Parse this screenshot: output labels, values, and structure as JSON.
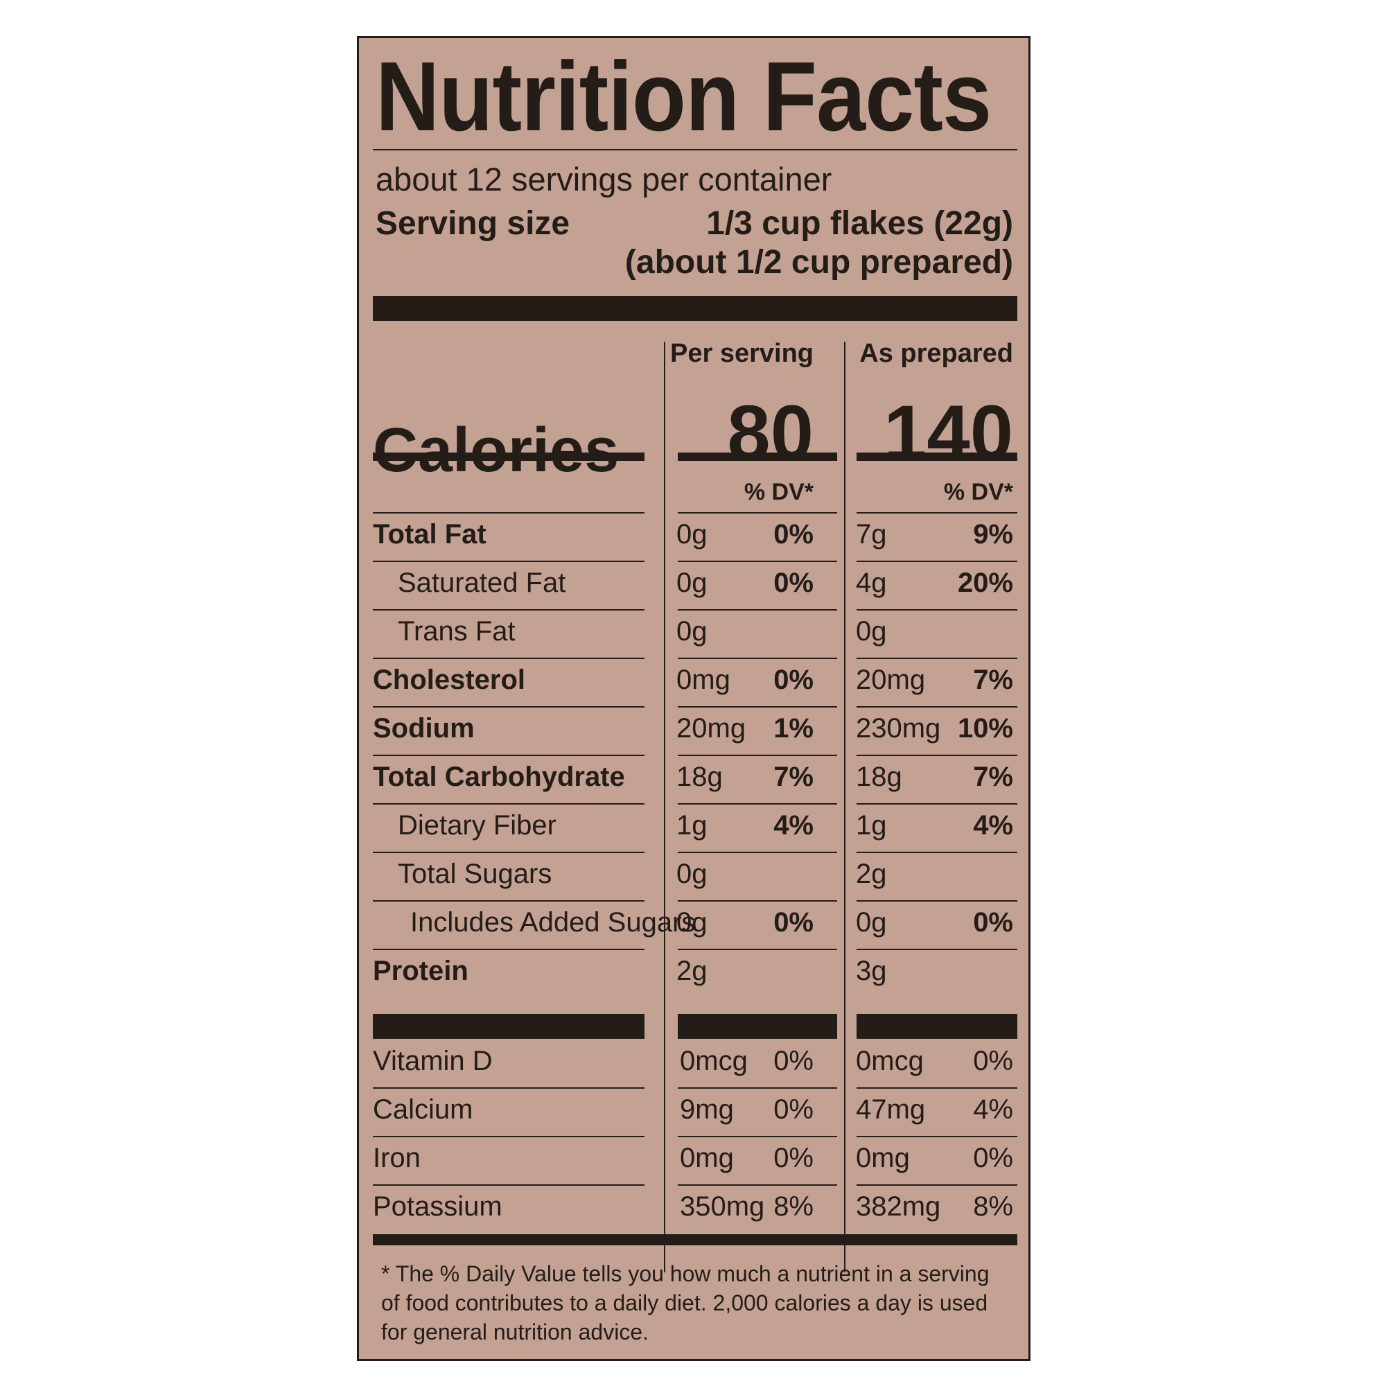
{
  "label": {
    "title": "Nutrition Facts",
    "servings_per_container": "about 12 servings per container",
    "serving_size_label": "Serving size",
    "serving_size_value": "1/3 cup flakes (22g)",
    "serving_size_prepared": "(about 1/2 cup prepared)",
    "col_per_serving": "Per serving",
    "col_as_prepared": "As prepared",
    "calories_label": "Calories",
    "calories_per_serving": "80",
    "calories_as_prepared": "140",
    "dv_header": "% DV*",
    "nutrients": [
      {
        "name": "Total Fat",
        "ps_amount": "0g",
        "ps_dv": "0%",
        "ap_amount": "7g",
        "ap_dv": "9%"
      },
      {
        "name": "Saturated Fat",
        "ps_amount": "0g",
        "ps_dv": "0%",
        "ap_amount": "4g",
        "ap_dv": "20%"
      },
      {
        "name": "Trans Fat",
        "ps_amount": "0g",
        "ps_dv": "",
        "ap_amount": "0g",
        "ap_dv": ""
      },
      {
        "name": "Cholesterol",
        "ps_amount": "0mg",
        "ps_dv": "0%",
        "ap_amount": "20mg",
        "ap_dv": "7%"
      },
      {
        "name": "Sodium",
        "ps_amount": "20mg",
        "ps_dv": "1%",
        "ap_amount": "230mg",
        "ap_dv": "10%"
      },
      {
        "name": "Total Carbohydrate",
        "ps_amount": "18g",
        "ps_dv": "7%",
        "ap_amount": "18g",
        "ap_dv": "7%"
      },
      {
        "name": "Dietary Fiber",
        "ps_amount": "1g",
        "ps_dv": "4%",
        "ap_amount": "1g",
        "ap_dv": "4%"
      },
      {
        "name": "Total Sugars",
        "ps_amount": "0g",
        "ps_dv": "",
        "ap_amount": "2g",
        "ap_dv": ""
      },
      {
        "name": "Includes Added Sugars",
        "ps_amount": "0g",
        "ps_dv": "0%",
        "ap_amount": "0g",
        "ap_dv": "0%"
      },
      {
        "name": "Protein",
        "ps_amount": "2g",
        "ps_dv": "",
        "ap_amount": "3g",
        "ap_dv": ""
      }
    ],
    "vitamins": [
      {
        "name": "Vitamin D",
        "ps_amount": "0mcg",
        "ps_dv": "0%",
        "ap_amount": "0mcg",
        "ap_dv": "0%"
      },
      {
        "name": "Calcium",
        "ps_amount": "9mg",
        "ps_dv": "0%",
        "ap_amount": "47mg",
        "ap_dv": "4%"
      },
      {
        "name": "Iron",
        "ps_amount": "0mg",
        "ps_dv": "0%",
        "ap_amount": "0mg",
        "ap_dv": "0%"
      },
      {
        "name": "Potassium",
        "ps_amount": "350mg",
        "ps_dv": "8%",
        "ap_amount": "382mg",
        "ap_dv": "8%"
      }
    ],
    "footnote": "* The % Daily Value tells you how much a nutrient in a serving of food contributes to a daily diet. 2,000 calories a day is used for general nutrition advice."
  },
  "colors": {
    "background": "#c4a293",
    "ink": "#231c17"
  }
}
